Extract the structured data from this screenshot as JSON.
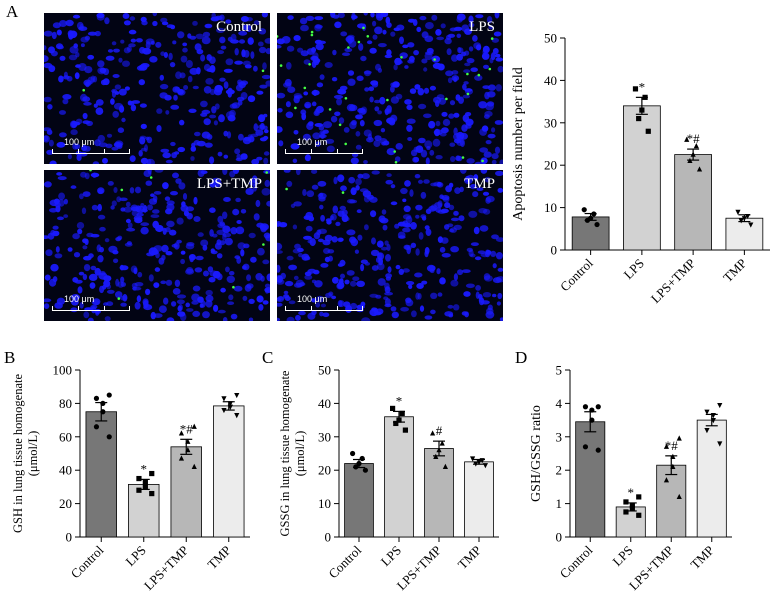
{
  "panel_labels": [
    "A",
    "B",
    "C",
    "D"
  ],
  "micrographs": [
    {
      "label": "Control",
      "scale_label": "100 μm",
      "green_density": 2
    },
    {
      "label": "LPS",
      "scale_label": "100 μm",
      "green_density": 28
    },
    {
      "label": "LPS+TMP",
      "scale_label": "100 μm",
      "green_density": 7
    },
    {
      "label": "TMP",
      "scale_label": "100 μm",
      "green_density": 2
    }
  ],
  "colors": {
    "control": "#777777",
    "lps": "#d2d2d2",
    "lps_tmp": "#b7b7b7",
    "tmp": "#ececec",
    "nuclei": "#1a1aff",
    "apoptotic": "#44ff44",
    "background": "#020414"
  },
  "chart_data": [
    {
      "id": "A",
      "type": "bar",
      "categories": [
        "Control",
        "LPS",
        "LPS+TMP",
        "TMP"
      ],
      "values": [
        7.8,
        34,
        22.5,
        7.5
      ],
      "errors": [
        0.8,
        2.0,
        1.3,
        0.8
      ],
      "points": [
        [
          6,
          7,
          7.5,
          8.5,
          9.5
        ],
        [
          28,
          31,
          33,
          36,
          38
        ],
        [
          19,
          21,
          22.5,
          24.5,
          26
        ],
        [
          6,
          7,
          7.5,
          8,
          9
        ]
      ],
      "markers": [
        "circle",
        "square",
        "triangle",
        "triangle-down"
      ],
      "annotations": [
        "",
        "*",
        "*#",
        ""
      ],
      "ylabel": "Apoptosis number per field",
      "ylim": [
        0,
        50
      ],
      "yticks": [
        0,
        10,
        20,
        30,
        40,
        50
      ],
      "xlabel": ""
    },
    {
      "id": "B",
      "type": "bar",
      "categories": [
        "Control",
        "LPS",
        "LPS+TMP",
        "TMP"
      ],
      "values": [
        75,
        31.5,
        54,
        78.5
      ],
      "errors": [
        5.5,
        3.0,
        4.5,
        2.5
      ],
      "points": [
        [
          60,
          66,
          75,
          80,
          83,
          85
        ],
        [
          26,
          28,
          30,
          33,
          35,
          38
        ],
        [
          42,
          47,
          52,
          57,
          62,
          66
        ],
        [
          73,
          76,
          78,
          80,
          83,
          85
        ]
      ],
      "markers": [
        "circle",
        "square",
        "triangle",
        "triangle-down"
      ],
      "annotations": [
        "",
        "*",
        "*#",
        ""
      ],
      "ylabel_lines": [
        "GSH in lung tissue homogenate",
        "(μmol/L)"
      ],
      "ylim": [
        0,
        100
      ],
      "yticks": [
        0,
        20,
        40,
        60,
        80,
        100
      ],
      "xlabel": ""
    },
    {
      "id": "C",
      "type": "bar",
      "categories": [
        "Control",
        "LPS",
        "LPS+TMP",
        "TMP"
      ],
      "values": [
        22,
        36,
        26.5,
        22.5
      ],
      "errors": [
        1.2,
        1.6,
        2.2,
        0.7
      ],
      "points": [
        [
          20,
          21,
          22,
          23.5,
          25
        ],
        [
          32,
          34,
          35,
          37,
          38.5
        ],
        [
          21,
          24,
          26,
          28,
          31
        ],
        [
          21.5,
          22,
          22.5,
          23,
          23.5
        ]
      ],
      "markers": [
        "circle",
        "square",
        "triangle",
        "triangle-down"
      ],
      "annotations": [
        "",
        "*",
        "#",
        ""
      ],
      "ylabel_lines": [
        "GSSG in lung tissue homogenate",
        "(μmol/L)"
      ],
      "ylim": [
        0,
        50
      ],
      "yticks": [
        0,
        10,
        20,
        30,
        40,
        50
      ],
      "xlabel": ""
    },
    {
      "id": "D",
      "type": "bar",
      "categories": [
        "Control",
        "LPS",
        "LPS+TMP",
        "TMP"
      ],
      "values": [
        3.45,
        0.9,
        2.15,
        3.5
      ],
      "errors": [
        0.3,
        0.12,
        0.28,
        0.17
      ],
      "points": [
        [
          2.6,
          2.7,
          3.5,
          3.8,
          3.9,
          3.9
        ],
        [
          0.65,
          0.75,
          0.85,
          0.95,
          1.05,
          1.2
        ],
        [
          1.2,
          1.7,
          2.1,
          2.4,
          2.7,
          2.95
        ],
        [
          2.8,
          3.2,
          3.5,
          3.65,
          3.75,
          3.95
        ]
      ],
      "markers": [
        "circle",
        "square",
        "triangle",
        "triangle-down"
      ],
      "annotations": [
        "",
        "*",
        "*#",
        ""
      ],
      "ylabel": "GSH/GSSG ratio",
      "ylim": [
        0,
        5
      ],
      "yticks": [
        0,
        1,
        2,
        3,
        4,
        5
      ],
      "xlabel": ""
    }
  ]
}
